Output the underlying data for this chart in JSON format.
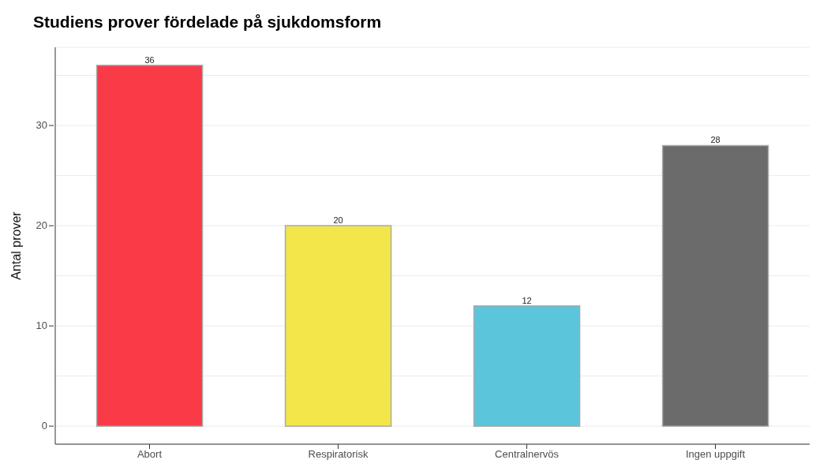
{
  "chart_data": {
    "type": "bar",
    "title": "Studiens prover fördelade på sjukdomsform",
    "ylabel": "Antal prover",
    "categories": [
      "Abort",
      "Respiratorisk",
      "Centralnervös",
      "Ingen uppgift"
    ],
    "values": [
      36,
      20,
      12,
      28
    ],
    "colors": [
      "#f93a47",
      "#f2e64b",
      "#5bc5dc",
      "#6b6b6b"
    ],
    "ylim": [
      -1.8,
      37.8
    ],
    "yticks": [
      0,
      {
        "value": 5,
        "label": null
      },
      10,
      {
        "value": 15,
        "label": null
      },
      20,
      {
        "value": 25,
        "label": null
      },
      30,
      {
        "value": 35,
        "label": null
      }
    ],
    "grid": "y",
    "data_labels": true
  }
}
